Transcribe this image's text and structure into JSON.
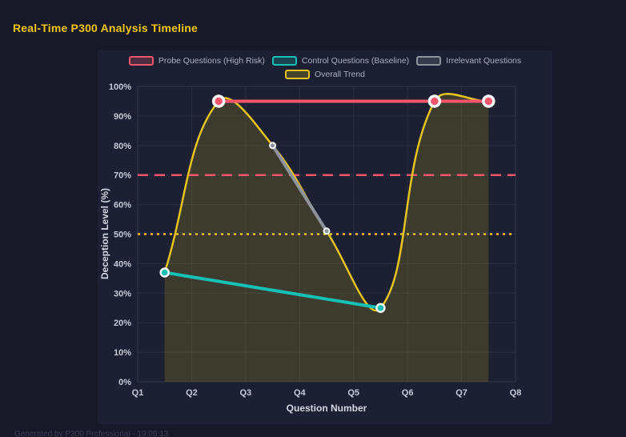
{
  "header": {
    "title": "Real-Time P300 Analysis Timeline"
  },
  "footer": {
    "text": "Generated by P300 Professional - 19:05:13"
  },
  "colors": {
    "page_bg": "#171929",
    "panel_bg": "#1d2032",
    "grid": "#2b2e41",
    "title": "#f3c614",
    "tick_label": "#c6cad6",
    "axis_title": "#d4d7e1",
    "legend_text": "#a9aebc",
    "probe_red": "#f4566b",
    "control_teal": "#15c0b5",
    "irrelevant_gray": "#8f939c",
    "trend_yellow": "#e5c41f",
    "point_ring_white": "#f5f7fa"
  },
  "chart_data": {
    "type": "line",
    "title": "Real-Time P300 Analysis Timeline",
    "xlabel": "Question Number",
    "ylabel": "Deception Level (%)",
    "x_tick_labels": [
      "Q1",
      "Q2",
      "Q3",
      "Q4",
      "Q5",
      "Q6",
      "Q7",
      "Q8"
    ],
    "y_tick_labels": [
      "0%",
      "10%",
      "20%",
      "30%",
      "40%",
      "50%",
      "60%",
      "70%",
      "80%",
      "90%",
      "100%"
    ],
    "x_range": [
      1,
      8
    ],
    "y_range": [
      0,
      100
    ],
    "grid": true,
    "legend_position": "top",
    "legend_rows": [
      [
        0,
        1,
        2
      ],
      [
        3
      ]
    ],
    "series": [
      {
        "id": "probe",
        "name": "Probe Questions (High Risk)",
        "color": "#f4566b",
        "interpolation": "linear",
        "line_width": 4,
        "point_radius": 6.5,
        "point_ring": 3.5,
        "fill": false,
        "points": [
          {
            "x": 2.5,
            "y": 95
          },
          {
            "x": 6.5,
            "y": 95
          },
          {
            "x": 7.5,
            "y": 95
          }
        ]
      },
      {
        "id": "control",
        "name": "Control Questions (Baseline)",
        "color": "#15c0b5",
        "interpolation": "linear",
        "line_width": 4,
        "point_radius": 5,
        "point_ring": 2.5,
        "fill": false,
        "points": [
          {
            "x": 1.5,
            "y": 37
          },
          {
            "x": 5.5,
            "y": 25
          }
        ]
      },
      {
        "id": "irrelevant",
        "name": "Irrelevant Questions",
        "color": "#8f939c",
        "interpolation": "linear",
        "line_width": 4,
        "point_radius": 3.5,
        "point_ring": 2,
        "fill": false,
        "points": [
          {
            "x": 3.5,
            "y": 80
          },
          {
            "x": 4.5,
            "y": 51
          }
        ]
      },
      {
        "id": "trend",
        "name": "Overall Trend",
        "color": "#e5c41f",
        "interpolation": "spline",
        "line_width": 2.5,
        "point_radius": 0,
        "point_ring": 0,
        "fill": true,
        "fill_alpha": 0.16,
        "points": [
          {
            "x": 1.5,
            "y": 37
          },
          {
            "x": 2.5,
            "y": 95
          },
          {
            "x": 3.5,
            "y": 80
          },
          {
            "x": 4.5,
            "y": 51
          },
          {
            "x": 5.5,
            "y": 25
          },
          {
            "x": 6.5,
            "y": 95
          },
          {
            "x": 7.5,
            "y": 95
          }
        ]
      }
    ],
    "thresholds": [
      {
        "value": 70,
        "color": "#f4566b",
        "pattern": "dashed"
      },
      {
        "value": 50,
        "color": "#e5c41f",
        "pattern": "dotted"
      }
    ]
  }
}
